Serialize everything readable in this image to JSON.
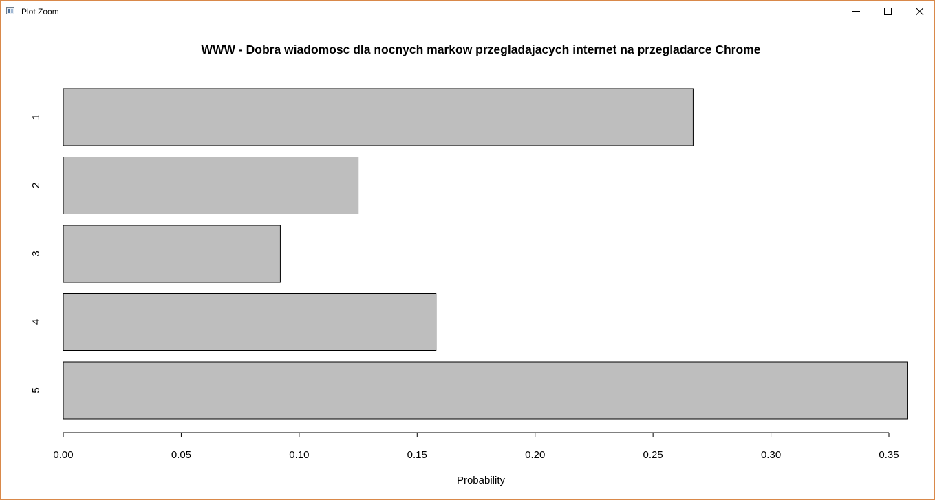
{
  "window": {
    "title": "Plot Zoom",
    "icons": {
      "app": "plot-window-icon",
      "minimize": "minimize-icon",
      "maximize": "maximize-icon",
      "close": "close-icon"
    }
  },
  "chart_data": {
    "type": "bar",
    "orientation": "horizontal",
    "title": "WWW - Dobra wiadomosc dla nocnych markow przegladajacych internet na przegladarce Chrome",
    "xlabel": "Probability",
    "ylabel": "",
    "categories": [
      "1",
      "2",
      "3",
      "4",
      "5"
    ],
    "values": [
      0.267,
      0.125,
      0.092,
      0.158,
      0.358
    ],
    "xlim": [
      0,
      0.35
    ],
    "xticks": [
      0.0,
      0.05,
      0.1,
      0.15,
      0.2,
      0.25,
      0.3,
      0.35
    ],
    "xtick_labels": [
      "0.00",
      "0.05",
      "0.10",
      "0.15",
      "0.20",
      "0.25",
      "0.30",
      "0.35"
    ],
    "grid": false,
    "legend": "none",
    "bar_fill": "#bebebe",
    "bar_edge": "#000000"
  }
}
